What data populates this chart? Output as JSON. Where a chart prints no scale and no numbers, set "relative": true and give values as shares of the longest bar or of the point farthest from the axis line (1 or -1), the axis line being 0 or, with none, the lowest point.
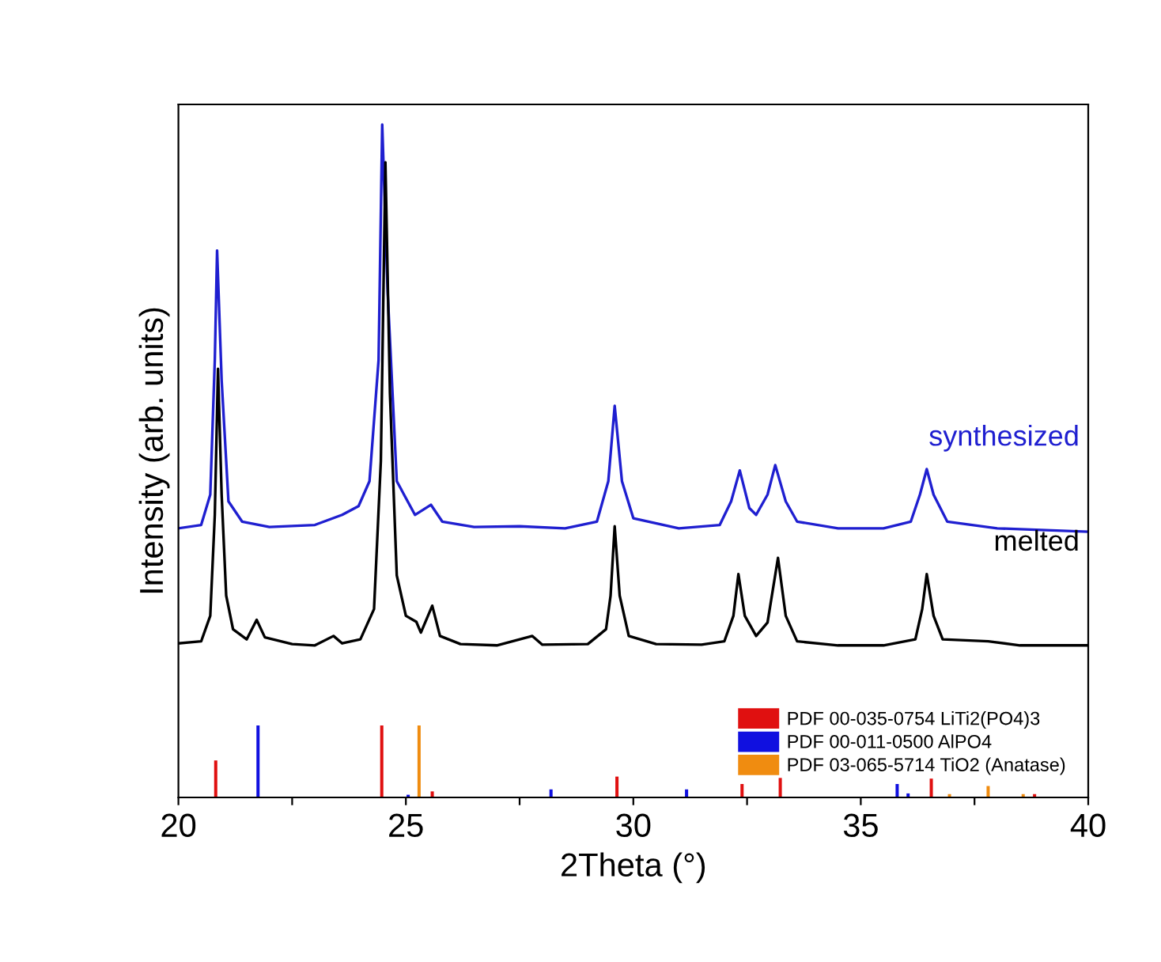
{
  "chart_data": {
    "type": "line",
    "relative": true,
    "xlabel": "2Theta (°)",
    "ylabel": "Intensity (arb. units)",
    "xlim": [
      20,
      40
    ],
    "xticks": [
      20,
      {
        "value": 22.5,
        "label": null
      },
      25,
      {
        "value": 27.5,
        "label": null
      },
      30,
      {
        "value": 32.5,
        "label": null
      },
      35,
      {
        "value": 37.5,
        "label": null
      },
      40
    ],
    "legend": "bottom right",
    "grid": false,
    "series": [
      {
        "name": "synthesized",
        "color": "#1f1fd0",
        "x": [
          20,
          20.5,
          20.7,
          20.8,
          20.85,
          20.95,
          21.1,
          21.4,
          22,
          23,
          23.6,
          23.96,
          24.2,
          24.4,
          24.48,
          24.6,
          24.8,
          25.2,
          25.55,
          25.8,
          26.5,
          27.5,
          28.5,
          29.2,
          29.45,
          29.59,
          29.75,
          30.0,
          31.0,
          31.9,
          32.15,
          32.34,
          32.55,
          32.7,
          32.95,
          33.12,
          33.35,
          33.6,
          34.5,
          35.5,
          36.1,
          36.3,
          36.45,
          36.6,
          36.9,
          38,
          40
        ],
        "values": [
          0.4,
          0.405,
          0.45,
          0.65,
          0.813,
          0.62,
          0.44,
          0.41,
          0.402,
          0.405,
          0.42,
          0.433,
          0.47,
          0.65,
          1.0,
          0.75,
          0.47,
          0.42,
          0.435,
          0.41,
          0.402,
          0.403,
          0.4,
          0.41,
          0.47,
          0.582,
          0.47,
          0.415,
          0.4,
          0.405,
          0.44,
          0.486,
          0.43,
          0.42,
          0.45,
          0.494,
          0.44,
          0.41,
          0.4,
          0.4,
          0.41,
          0.45,
          0.488,
          0.45,
          0.41,
          0.4,
          0.395
        ]
      },
      {
        "name": "melted",
        "color": "#000000",
        "x": [
          20.0,
          20.5,
          20.7,
          20.8,
          20.87,
          20.95,
          21.05,
          21.2,
          21.5,
          21.72,
          21.9,
          22.5,
          23.0,
          23.41,
          23.6,
          24.0,
          24.3,
          24.45,
          24.55,
          24.65,
          24.8,
          25.0,
          25.23,
          25.33,
          25.58,
          25.75,
          26.2,
          27.0,
          27.78,
          28.0,
          29.0,
          29.4,
          29.5,
          29.59,
          29.7,
          29.9,
          30.5,
          31.5,
          32.0,
          32.2,
          32.31,
          32.45,
          32.7,
          32.95,
          33.18,
          33.35,
          33.6,
          34.5,
          35.5,
          36.2,
          36.35,
          36.45,
          36.6,
          36.8,
          37.8,
          38.5,
          40
        ],
        "values": [
          0.229,
          0.232,
          0.27,
          0.42,
          0.637,
          0.45,
          0.3,
          0.25,
          0.235,
          0.264,
          0.238,
          0.228,
          0.226,
          0.24,
          0.229,
          0.235,
          0.28,
          0.5,
          0.944,
          0.6,
          0.33,
          0.27,
          0.261,
          0.245,
          0.285,
          0.24,
          0.228,
          0.226,
          0.24,
          0.227,
          0.228,
          0.25,
          0.3,
          0.403,
          0.3,
          0.24,
          0.228,
          0.227,
          0.232,
          0.27,
          0.332,
          0.27,
          0.24,
          0.26,
          0.356,
          0.27,
          0.232,
          0.226,
          0.226,
          0.235,
          0.28,
          0.332,
          0.27,
          0.235,
          0.232,
          0.226,
          0.226
        ]
      },
      {
        "name": "PDF 00-035-0754 LiTi2(PO4)3",
        "type": "bar",
        "color": "#e01010",
        "x": [
          20.82,
          24.47,
          25.58,
          29.64,
          32.39,
          33.23,
          36.55,
          38.82
        ],
        "values": [
          0.055,
          0.107,
          0.009,
          0.031,
          0.02,
          0.029,
          0.028,
          0.005
        ]
      },
      {
        "name": "PDF 00-011-0500 AlPO4",
        "type": "bar",
        "color": "#1010e0",
        "x": [
          21.75,
          25.05,
          28.19,
          31.17,
          35.8,
          36.04
        ],
        "values": [
          0.107,
          0.004,
          0.012,
          0.012,
          0.02,
          0.006
        ]
      },
      {
        "name": "PDF 03-065-5714 TiO2 (Anatase)",
        "type": "bar",
        "color": "#f08c10",
        "x": [
          25.29,
          36.95,
          37.8,
          38.57
        ],
        "values": [
          0.107,
          0.005,
          0.017,
          0.005
        ]
      }
    ]
  }
}
